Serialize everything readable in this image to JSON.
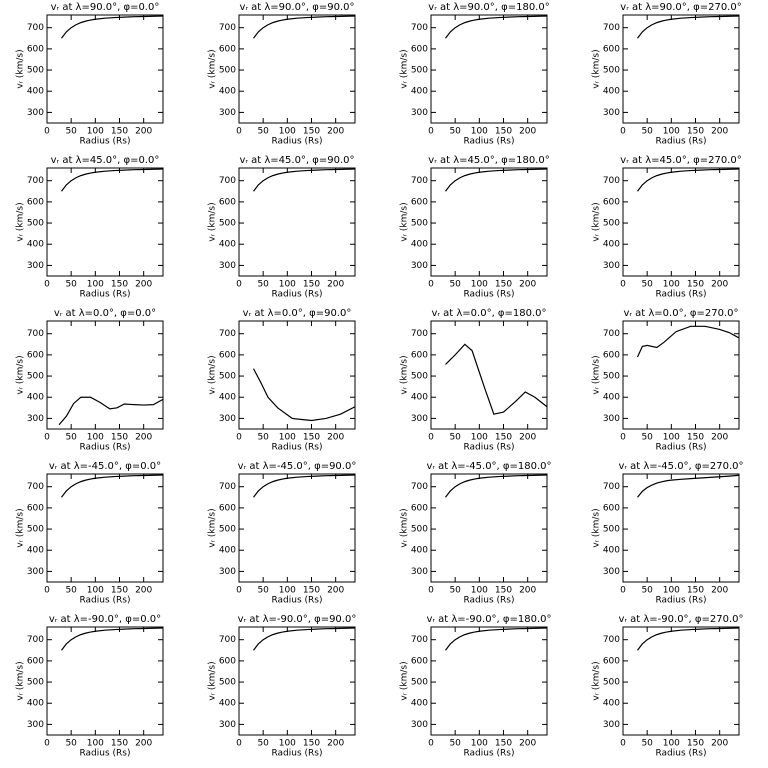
{
  "chart_data": [
    {
      "type": "line",
      "title": "vᵣ at λ=90.0°, φ=0.0°",
      "xlabel": "Radius (Rs)",
      "ylabel": "vᵣ (km/s)",
      "color": "#000000",
      "xlim": [
        0,
        240
      ],
      "ylim": [
        250,
        760
      ],
      "xticks": [
        0,
        50,
        100,
        150,
        200
      ],
      "yticks": [
        300,
        400,
        500,
        600,
        700
      ],
      "x": [
        30,
        40,
        50,
        60,
        70,
        80,
        90,
        100,
        120,
        140,
        160,
        180,
        200,
        220,
        240
      ],
      "values": [
        650,
        680,
        700,
        714,
        724,
        731,
        736,
        740,
        745,
        748,
        750,
        752,
        753,
        754,
        755
      ]
    },
    {
      "type": "line",
      "title": "vᵣ at λ=90.0°, φ=90.0°",
      "xlabel": "Radius (Rs)",
      "ylabel": "vᵣ (km/s)",
      "color": "#000000",
      "xlim": [
        0,
        240
      ],
      "ylim": [
        250,
        760
      ],
      "xticks": [
        0,
        50,
        100,
        150,
        200
      ],
      "yticks": [
        300,
        400,
        500,
        600,
        700
      ],
      "x": [
        30,
        40,
        50,
        60,
        70,
        80,
        90,
        100,
        120,
        140,
        160,
        180,
        200,
        220,
        240
      ],
      "values": [
        650,
        680,
        700,
        714,
        724,
        731,
        736,
        740,
        745,
        748,
        750,
        752,
        753,
        754,
        755
      ]
    },
    {
      "type": "line",
      "title": "vᵣ at λ=90.0°, φ=180.0°",
      "xlabel": "Radius (Rs)",
      "ylabel": "vᵣ (km/s)",
      "color": "#000000",
      "xlim": [
        0,
        240
      ],
      "ylim": [
        250,
        760
      ],
      "xticks": [
        0,
        50,
        100,
        150,
        200
      ],
      "yticks": [
        300,
        400,
        500,
        600,
        700
      ],
      "x": [
        30,
        40,
        50,
        60,
        70,
        80,
        90,
        100,
        120,
        140,
        160,
        180,
        200,
        220,
        240
      ],
      "values": [
        650,
        680,
        700,
        714,
        724,
        731,
        736,
        740,
        745,
        748,
        750,
        752,
        753,
        754,
        755
      ]
    },
    {
      "type": "line",
      "title": "vᵣ at λ=90.0°, φ=270.0°",
      "xlabel": "Radius (Rs)",
      "ylabel": "vᵣ (km/s)",
      "color": "#000000",
      "xlim": [
        0,
        240
      ],
      "ylim": [
        250,
        760
      ],
      "xticks": [
        0,
        50,
        100,
        150,
        200
      ],
      "yticks": [
        300,
        400,
        500,
        600,
        700
      ],
      "x": [
        30,
        40,
        50,
        60,
        70,
        80,
        90,
        100,
        120,
        140,
        160,
        180,
        200,
        220,
        240
      ],
      "values": [
        650,
        680,
        700,
        714,
        724,
        731,
        736,
        740,
        745,
        748,
        750,
        752,
        753,
        754,
        755
      ]
    },
    {
      "type": "line",
      "title": "vᵣ at λ=45.0°, φ=0.0°",
      "xlabel": "Radius (Rs)",
      "ylabel": "vᵣ (km/s)",
      "color": "#000000",
      "xlim": [
        0,
        240
      ],
      "ylim": [
        250,
        760
      ],
      "xticks": [
        0,
        50,
        100,
        150,
        200
      ],
      "yticks": [
        300,
        400,
        500,
        600,
        700
      ],
      "x": [
        30,
        40,
        50,
        60,
        70,
        80,
        90,
        100,
        120,
        140,
        160,
        180,
        200,
        220,
        240
      ],
      "values": [
        650,
        680,
        700,
        714,
        724,
        731,
        736,
        740,
        745,
        748,
        750,
        752,
        753,
        754,
        755
      ]
    },
    {
      "type": "line",
      "title": "vᵣ at λ=45.0°, φ=90.0°",
      "xlabel": "Radius (Rs)",
      "ylabel": "vᵣ (km/s)",
      "color": "#000000",
      "xlim": [
        0,
        240
      ],
      "ylim": [
        250,
        760
      ],
      "xticks": [
        0,
        50,
        100,
        150,
        200
      ],
      "yticks": [
        300,
        400,
        500,
        600,
        700
      ],
      "x": [
        30,
        40,
        50,
        60,
        70,
        80,
        90,
        100,
        120,
        140,
        160,
        180,
        200,
        220,
        240
      ],
      "values": [
        650,
        680,
        700,
        714,
        724,
        731,
        736,
        740,
        745,
        748,
        750,
        752,
        753,
        754,
        755
      ]
    },
    {
      "type": "line",
      "title": "vᵣ at λ=45.0°, φ=180.0°",
      "xlabel": "Radius (Rs)",
      "ylabel": "vᵣ (km/s)",
      "color": "#000000",
      "xlim": [
        0,
        240
      ],
      "ylim": [
        250,
        760
      ],
      "xticks": [
        0,
        50,
        100,
        150,
        200
      ],
      "yticks": [
        300,
        400,
        500,
        600,
        700
      ],
      "x": [
        30,
        40,
        50,
        60,
        70,
        80,
        90,
        100,
        120,
        140,
        160,
        180,
        200,
        220,
        240
      ],
      "values": [
        650,
        680,
        700,
        714,
        724,
        731,
        736,
        740,
        745,
        748,
        750,
        752,
        753,
        754,
        755
      ]
    },
    {
      "type": "line",
      "title": "vᵣ at λ=45.0°, φ=270.0°",
      "xlabel": "Radius (Rs)",
      "ylabel": "vᵣ (km/s)",
      "color": "#000000",
      "xlim": [
        0,
        240
      ],
      "ylim": [
        250,
        760
      ],
      "xticks": [
        0,
        50,
        100,
        150,
        200
      ],
      "yticks": [
        300,
        400,
        500,
        600,
        700
      ],
      "x": [
        30,
        40,
        50,
        60,
        70,
        80,
        90,
        100,
        120,
        140,
        160,
        180,
        200,
        220,
        240
      ],
      "values": [
        650,
        680,
        700,
        714,
        724,
        731,
        736,
        740,
        745,
        748,
        750,
        752,
        753,
        754,
        755
      ]
    },
    {
      "type": "line",
      "title": "vᵣ at λ=0.0°, φ=0.0°",
      "xlabel": "Radius (Rs)",
      "ylabel": "vᵣ (km/s)",
      "color": "#000000",
      "xlim": [
        0,
        240
      ],
      "ylim": [
        250,
        760
      ],
      "xticks": [
        0,
        50,
        100,
        150,
        200
      ],
      "yticks": [
        300,
        400,
        500,
        600,
        700
      ],
      "x": [
        25,
        40,
        55,
        70,
        90,
        110,
        130,
        145,
        160,
        180,
        200,
        220,
        240
      ],
      "values": [
        270,
        310,
        370,
        400,
        400,
        375,
        345,
        350,
        368,
        365,
        363,
        365,
        390
      ]
    },
    {
      "type": "line",
      "title": "vᵣ at λ=0.0°, φ=90.0°",
      "xlabel": "Radius (Rs)",
      "ylabel": "vᵣ (km/s)",
      "color": "#000000",
      "xlim": [
        0,
        240
      ],
      "ylim": [
        250,
        760
      ],
      "xticks": [
        0,
        50,
        100,
        150,
        200
      ],
      "yticks": [
        300,
        400,
        500,
        600,
        700
      ],
      "x": [
        30,
        45,
        60,
        80,
        110,
        130,
        150,
        180,
        210,
        240
      ],
      "values": [
        535,
        470,
        400,
        350,
        300,
        295,
        290,
        300,
        320,
        355
      ]
    },
    {
      "type": "line",
      "title": "vᵣ at λ=0.0°, φ=180.0°",
      "xlabel": "Radius (Rs)",
      "ylabel": "vᵣ (km/s)",
      "color": "#000000",
      "xlim": [
        0,
        240
      ],
      "ylim": [
        250,
        760
      ],
      "xticks": [
        0,
        50,
        100,
        150,
        200
      ],
      "yticks": [
        300,
        400,
        500,
        600,
        700
      ],
      "x": [
        30,
        50,
        70,
        85,
        110,
        130,
        150,
        175,
        195,
        215,
        240
      ],
      "values": [
        555,
        600,
        650,
        620,
        450,
        320,
        330,
        380,
        425,
        400,
        355
      ]
    },
    {
      "type": "line",
      "title": "vᵣ at λ=0.0°, φ=270.0°",
      "xlabel": "Radius (Rs)",
      "ylabel": "vᵣ (km/s)",
      "color": "#000000",
      "xlim": [
        0,
        240
      ],
      "ylim": [
        250,
        760
      ],
      "xticks": [
        0,
        50,
        100,
        150,
        200
      ],
      "yticks": [
        300,
        400,
        500,
        600,
        700
      ],
      "x": [
        30,
        40,
        50,
        70,
        85,
        110,
        140,
        170,
        200,
        220,
        240
      ],
      "values": [
        590,
        640,
        645,
        635,
        660,
        710,
        735,
        735,
        720,
        705,
        680
      ]
    },
    {
      "type": "line",
      "title": "vᵣ at λ=-45.0°, φ=0.0°",
      "xlabel": "Radius (Rs)",
      "ylabel": "vᵣ (km/s)",
      "color": "#000000",
      "xlim": [
        0,
        240
      ],
      "ylim": [
        250,
        760
      ],
      "xticks": [
        0,
        50,
        100,
        150,
        200
      ],
      "yticks": [
        300,
        400,
        500,
        600,
        700
      ],
      "x": [
        30,
        40,
        50,
        60,
        70,
        80,
        90,
        100,
        120,
        140,
        160,
        180,
        200,
        220,
        240
      ],
      "values": [
        650,
        680,
        700,
        714,
        724,
        731,
        736,
        740,
        745,
        748,
        750,
        752,
        753,
        754,
        755
      ]
    },
    {
      "type": "line",
      "title": "vᵣ at λ=-45.0°, φ=90.0°",
      "xlabel": "Radius (Rs)",
      "ylabel": "vᵣ (km/s)",
      "color": "#000000",
      "xlim": [
        0,
        240
      ],
      "ylim": [
        250,
        760
      ],
      "xticks": [
        0,
        50,
        100,
        150,
        200
      ],
      "yticks": [
        300,
        400,
        500,
        600,
        700
      ],
      "x": [
        30,
        40,
        50,
        60,
        70,
        80,
        90,
        100,
        120,
        140,
        160,
        180,
        200,
        220,
        240
      ],
      "values": [
        650,
        680,
        700,
        714,
        724,
        731,
        736,
        740,
        745,
        748,
        750,
        752,
        753,
        754,
        755
      ]
    },
    {
      "type": "line",
      "title": "vᵣ at λ=-45.0°, φ=180.0°",
      "xlabel": "Radius (Rs)",
      "ylabel": "vᵣ (km/s)",
      "color": "#000000",
      "xlim": [
        0,
        240
      ],
      "ylim": [
        250,
        760
      ],
      "xticks": [
        0,
        50,
        100,
        150,
        200
      ],
      "yticks": [
        300,
        400,
        500,
        600,
        700
      ],
      "x": [
        30,
        40,
        50,
        60,
        70,
        80,
        90,
        100,
        120,
        140,
        160,
        180,
        200,
        220,
        240
      ],
      "values": [
        650,
        680,
        700,
        714,
        724,
        731,
        736,
        740,
        745,
        748,
        750,
        752,
        753,
        754,
        755
      ]
    },
    {
      "type": "line",
      "title": "vᵣ at λ=-45.0°, φ=270.0°",
      "xlabel": "Radius (Rs)",
      "ylabel": "vᵣ (km/s)",
      "color": "#000000",
      "xlim": [
        0,
        240
      ],
      "ylim": [
        250,
        760
      ],
      "xticks": [
        0,
        50,
        100,
        150,
        200
      ],
      "yticks": [
        300,
        400,
        500,
        600,
        700
      ],
      "x": [
        30,
        40,
        50,
        60,
        70,
        80,
        90,
        100,
        120,
        140,
        160,
        180,
        200,
        220,
        240
      ],
      "values": [
        650,
        678,
        696,
        708,
        717,
        723,
        728,
        731,
        735,
        738,
        741,
        744,
        747,
        750,
        754
      ]
    },
    {
      "type": "line",
      "title": "vᵣ at λ=-90.0°, φ=0.0°",
      "xlabel": "Radius (Rs)",
      "ylabel": "vᵣ (km/s)",
      "color": "#000000",
      "xlim": [
        0,
        240
      ],
      "ylim": [
        250,
        760
      ],
      "xticks": [
        0,
        50,
        100,
        150,
        200
      ],
      "yticks": [
        300,
        400,
        500,
        600,
        700
      ],
      "x": [
        30,
        40,
        50,
        60,
        70,
        80,
        90,
        100,
        120,
        140,
        160,
        180,
        200,
        220,
        240
      ],
      "values": [
        650,
        680,
        700,
        714,
        724,
        731,
        736,
        740,
        745,
        748,
        750,
        752,
        753,
        754,
        755
      ]
    },
    {
      "type": "line",
      "title": "vᵣ at λ=-90.0°, φ=90.0°",
      "xlabel": "Radius (Rs)",
      "ylabel": "vᵣ (km/s)",
      "color": "#000000",
      "xlim": [
        0,
        240
      ],
      "ylim": [
        250,
        760
      ],
      "xticks": [
        0,
        50,
        100,
        150,
        200
      ],
      "yticks": [
        300,
        400,
        500,
        600,
        700
      ],
      "x": [
        30,
        40,
        50,
        60,
        70,
        80,
        90,
        100,
        120,
        140,
        160,
        180,
        200,
        220,
        240
      ],
      "values": [
        650,
        680,
        700,
        714,
        724,
        731,
        736,
        740,
        745,
        748,
        750,
        752,
        753,
        754,
        755
      ]
    },
    {
      "type": "line",
      "title": "vᵣ at λ=-90.0°, φ=180.0°",
      "xlabel": "Radius (Rs)",
      "ylabel": "vᵣ (km/s)",
      "color": "#000000",
      "xlim": [
        0,
        240
      ],
      "ylim": [
        250,
        760
      ],
      "xticks": [
        0,
        50,
        100,
        150,
        200
      ],
      "yticks": [
        300,
        400,
        500,
        600,
        700
      ],
      "x": [
        30,
        40,
        50,
        60,
        70,
        80,
        90,
        100,
        120,
        140,
        160,
        180,
        200,
        220,
        240
      ],
      "values": [
        650,
        680,
        700,
        714,
        724,
        731,
        736,
        740,
        745,
        748,
        750,
        752,
        753,
        754,
        755
      ]
    },
    {
      "type": "line",
      "title": "vᵣ at λ=-90.0°, φ=270.0°",
      "xlabel": "Radius (Rs)",
      "ylabel": "vᵣ (km/s)",
      "color": "#000000",
      "xlim": [
        0,
        240
      ],
      "ylim": [
        250,
        760
      ],
      "xticks": [
        0,
        50,
        100,
        150,
        200
      ],
      "yticks": [
        300,
        400,
        500,
        600,
        700
      ],
      "x": [
        30,
        40,
        50,
        60,
        70,
        80,
        90,
        100,
        120,
        140,
        160,
        180,
        200,
        220,
        240
      ],
      "values": [
        650,
        680,
        700,
        714,
        724,
        731,
        736,
        740,
        745,
        748,
        750,
        752,
        753,
        754,
        755
      ]
    }
  ]
}
